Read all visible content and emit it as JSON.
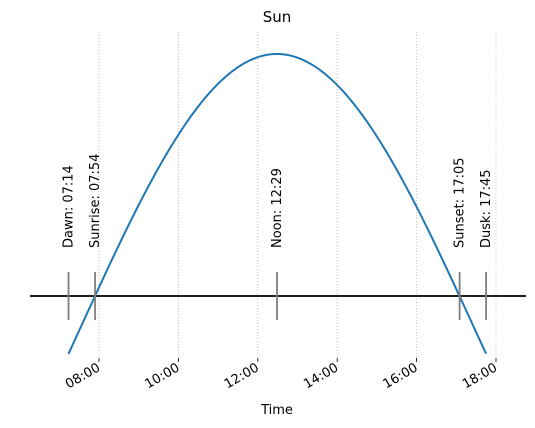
{
  "chart_data": {
    "type": "line",
    "title": "Sun",
    "xlabel": "Time",
    "ylabel": "",
    "x_ticks": [
      "08:00",
      "10:00",
      "12:00",
      "14:00",
      "16:00",
      "18:00"
    ],
    "x_tick_values_hours": [
      8,
      10,
      12,
      14,
      16,
      18
    ],
    "xlim_hours": [
      6.2,
      18.8
    ],
    "ylim": [
      -0.35,
      1.1
    ],
    "grid": "vertical dotted",
    "series": [
      {
        "name": "",
        "color": "#1f77b4",
        "curve": "sun elevation, zero at sunrise and sunset, peak at noon",
        "x_range_hours": [
          7.23,
          17.75
        ],
        "peak_hour": 12.48,
        "peak_value": 1.0,
        "zero_crossings_hours": [
          7.9,
          17.08
        ]
      }
    ],
    "horizon": {
      "y": 0,
      "color": "#000000"
    },
    "events": [
      {
        "label": "Dawn: 07:14",
        "hour": 7.233
      },
      {
        "label": "Sunrise: 07:54",
        "hour": 7.9
      },
      {
        "label": "Noon: 12:29",
        "hour": 12.483
      },
      {
        "label": "Sunset: 17:05",
        "hour": 17.083
      },
      {
        "label": "Dusk: 17:45",
        "hour": 17.75
      }
    ],
    "marker_color": "#7f7f7f"
  }
}
